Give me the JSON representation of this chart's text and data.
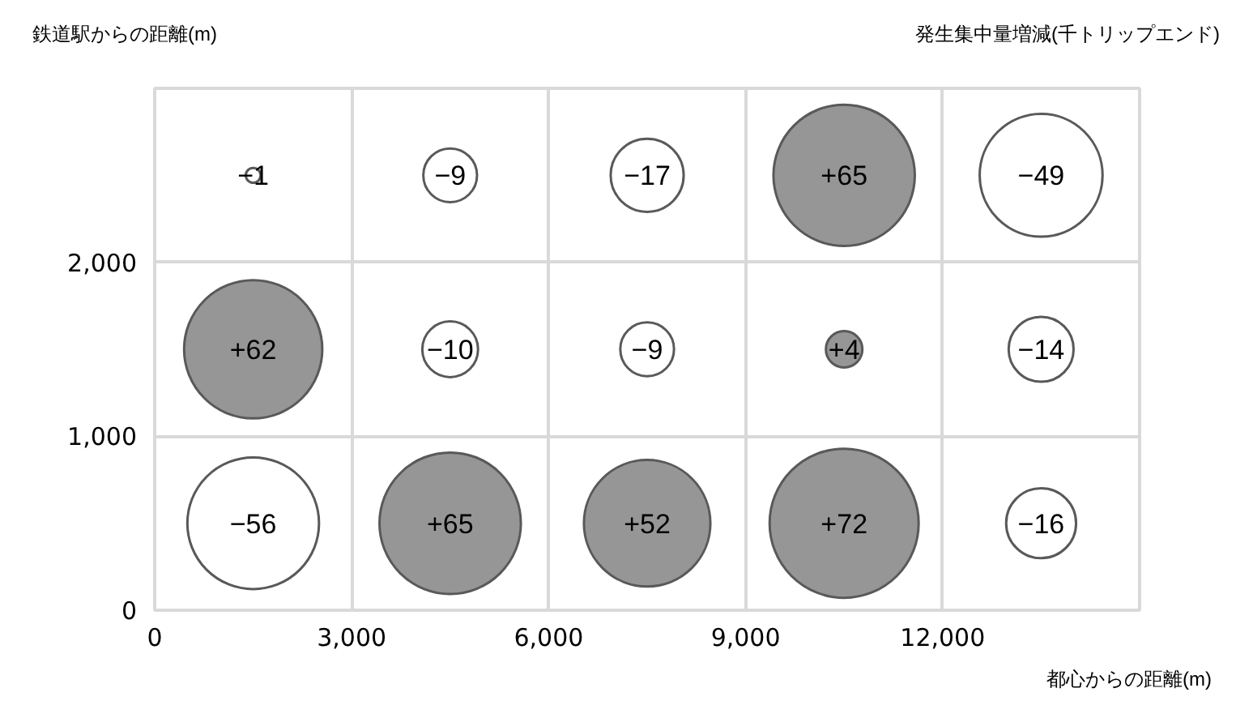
{
  "chart_data": {
    "type": "bubble",
    "title": "発生集中量増減(千トリップエンド)",
    "ylabel": "鉄道駅からの距離(m)",
    "xlabel": "都心からの距離(m)",
    "x": [
      1500,
      4500,
      7500,
      10500,
      13500,
      1500,
      4500,
      7500,
      10500,
      13500,
      1500,
      4500,
      7500,
      10500,
      13500
    ],
    "values": [
      2500,
      2500,
      2500,
      2500,
      2500,
      1500,
      1500,
      1500,
      1500,
      1500,
      500,
      500,
      500,
      500,
      500
    ],
    "sizes": [
      0.01,
      0.13,
      0.24,
      0.9,
      0.68,
      0.86,
      0.14,
      0.13,
      0.06,
      0.19,
      0.78,
      0.9,
      0.72,
      1,
      0.22
    ],
    "colors": [
      "#ffffff",
      "#ffffff",
      "#ffffff",
      "#969696",
      "#ffffff",
      "#969696",
      "#ffffff",
      "#ffffff",
      "#969696",
      "#ffffff",
      "#ffffff",
      "#969696",
      "#969696",
      "#969696",
      "#ffffff"
    ],
    "annotations": [
      {
        "text": "−1",
        "x": 1500,
        "y": 2500
      },
      {
        "text": "−9",
        "x": 4500,
        "y": 2500
      },
      {
        "text": "−17",
        "x": 7500,
        "y": 2500
      },
      {
        "text": "+65",
        "x": 10500,
        "y": 2500
      },
      {
        "text": "−49",
        "x": 13500,
        "y": 2500
      },
      {
        "text": "+62",
        "x": 1500,
        "y": 1500
      },
      {
        "text": "−10",
        "x": 4500,
        "y": 1500
      },
      {
        "text": "−9",
        "x": 7500,
        "y": 1500
      },
      {
        "text": "+4",
        "x": 10500,
        "y": 1500
      },
      {
        "text": "−14",
        "x": 13500,
        "y": 1500
      },
      {
        "text": "−56",
        "x": 1500,
        "y": 500
      },
      {
        "text": "+65",
        "x": 4500,
        "y": 500
      },
      {
        "text": "+52",
        "x": 7500,
        "y": 500
      },
      {
        "text": "+72",
        "x": 10500,
        "y": 500
      },
      {
        "text": "−16",
        "x": 13500,
        "y": 500
      }
    ],
    "xlim": [
      0,
      15000
    ],
    "ylim": [
      0,
      3000
    ],
    "xticks": [
      {
        "value": 0,
        "label": "0"
      },
      {
        "value": 3000,
        "label": "3,000"
      },
      {
        "value": 6000,
        "label": "6,000"
      },
      {
        "value": 9000,
        "label": "9,000"
      },
      {
        "value": 12000,
        "label": "12,000"
      }
    ],
    "yticks": [
      {
        "value": 0,
        "label": "0"
      },
      {
        "value": 1000,
        "label": "1,000"
      },
      {
        "value": 2000,
        "label": "2,000"
      }
    ],
    "grid": true
  }
}
